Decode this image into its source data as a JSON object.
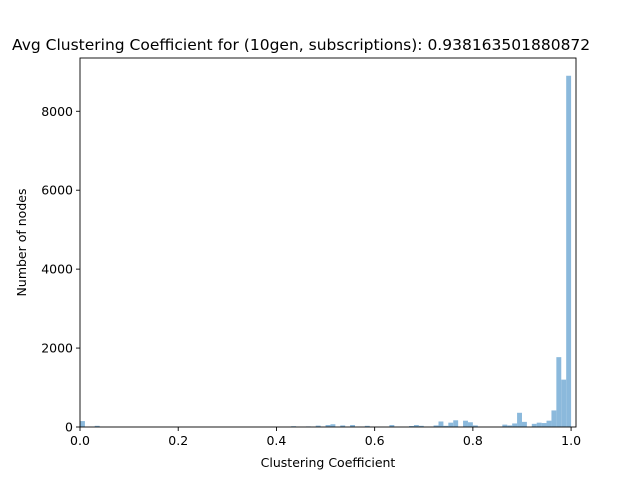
{
  "chart_data": {
    "type": "bar",
    "subtype": "histogram",
    "title": "Avg Clustering Coefficient for (10gen, subscriptions): 0.938163501880872",
    "xlabel": "Clustering Coefficient",
    "ylabel": "Number of nodes",
    "xlim": [
      0.0,
      1.01
    ],
    "ylim": [
      0,
      9350
    ],
    "xticks": [
      0.0,
      0.2,
      0.4,
      0.6,
      0.8,
      1.0
    ],
    "xtick_labels": [
      "0.0",
      "0.2",
      "0.4",
      "0.6",
      "0.8",
      "1.0"
    ],
    "yticks": [
      0,
      2000,
      4000,
      6000,
      8000
    ],
    "ytick_labels": [
      "0",
      "2000",
      "4000",
      "6000",
      "8000"
    ],
    "bins": 100,
    "bin_range": [
      0.0,
      1.0
    ],
    "bar_color": "#8bb9dc",
    "grid": false,
    "legend": "none",
    "counts": [
      150,
      0,
      0,
      30,
      0,
      0,
      0,
      0,
      0,
      0,
      0,
      0,
      0,
      0,
      0,
      0,
      0,
      0,
      0,
      0,
      0,
      0,
      0,
      0,
      0,
      0,
      0,
      0,
      0,
      0,
      0,
      0,
      0,
      0,
      0,
      0,
      0,
      0,
      0,
      0,
      0,
      0,
      0,
      20,
      0,
      0,
      15,
      0,
      35,
      0,
      50,
      70,
      0,
      40,
      0,
      50,
      0,
      0,
      30,
      0,
      0,
      0,
      0,
      50,
      0,
      0,
      0,
      25,
      50,
      30,
      0,
      0,
      40,
      140,
      30,
      110,
      170,
      0,
      160,
      120,
      40,
      0,
      0,
      0,
      0,
      0,
      60,
      40,
      90,
      360,
      130,
      0,
      80,
      110,
      100,
      160,
      420,
      1770,
      1200,
      8900
    ]
  }
}
